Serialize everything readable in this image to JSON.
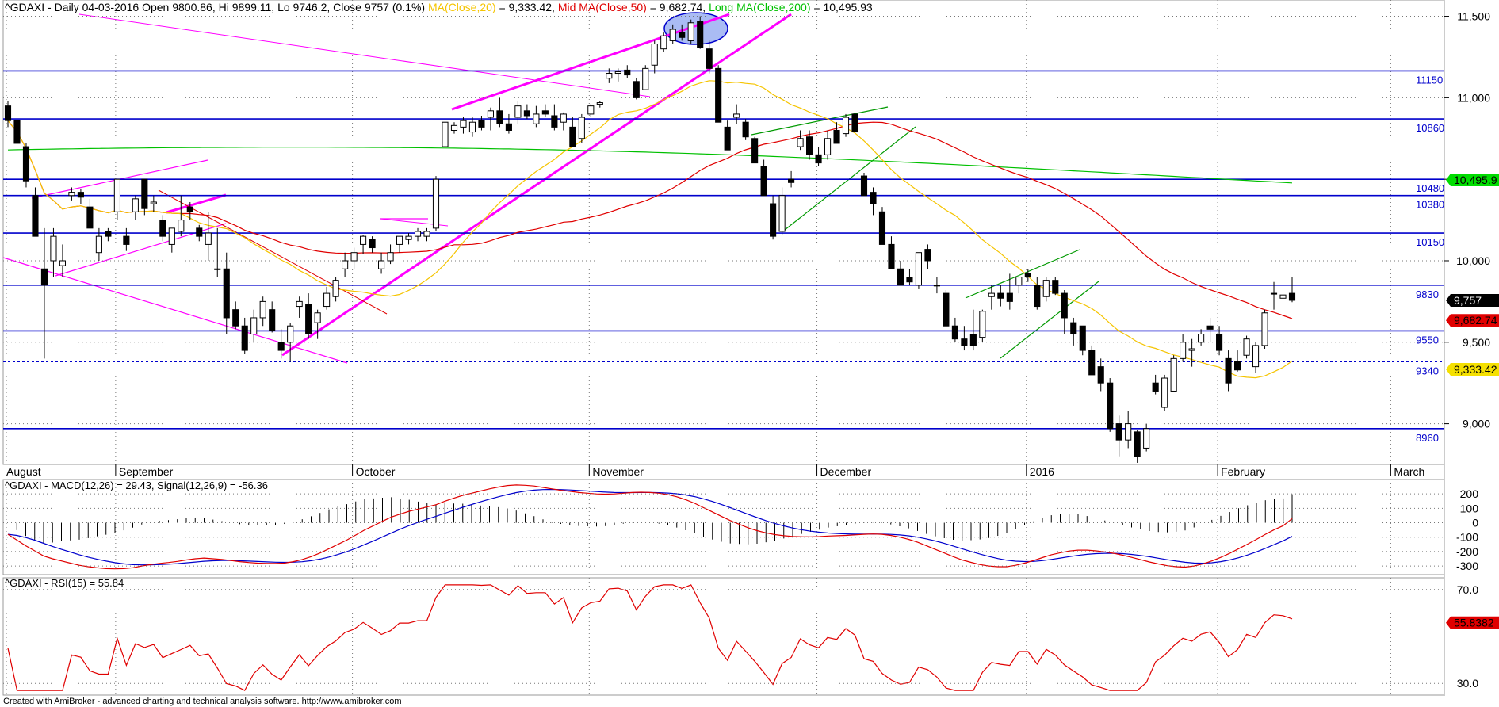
{
  "header": {
    "symbol": "^GDAXI",
    "summary": " - Daily 04-03-2016 Open 9800.86, Hi 9899.11, Lo 9746.2, Close 9757 (0.1%) ",
    "ma20_label": "MA(Close,20)",
    "ma20_value": " = 9,333.42, ",
    "ma50_label": "Mid MA(Close,50)",
    "ma50_value": " = 9,682.74, ",
    "ma200_label": "Long MA(Close,200)",
    "ma200_value": " = 10,495.93"
  },
  "colors": {
    "ma20": "#f5c400",
    "ma50": "#e00000",
    "ma200": "#00c000",
    "level_line": "#0000cc",
    "trend_magenta": "#ff00ff",
    "channel_green": "#009900",
    "macd": "#e00000",
    "signal": "#0000cc",
    "rsi": "#e00000"
  },
  "footer": "Created with AmiBroker - advanced charting and technical analysis software. http://www.amibroker.com",
  "chart_data": [
    {
      "type": "candlestick",
      "ylim": [
        8750,
        11600
      ],
      "price_ticks": [
        "11,500",
        "11,000",
        "10,500",
        "10,000",
        "9,500",
        "9,000"
      ],
      "months": [
        "August",
        "September",
        "October",
        "November",
        "December",
        "2016",
        "February",
        "March"
      ],
      "levels": [
        {
          "label": "11150",
          "value": 11165
        },
        {
          "label": "10860",
          "value": 10870
        },
        {
          "label": "10480",
          "value": 10500
        },
        {
          "label": "10380",
          "value": 10400
        },
        {
          "label": "10150",
          "value": 10170
        },
        {
          "label": "9830",
          "value": 9850
        },
        {
          "label": "9550",
          "value": 9570
        },
        {
          "label": "9340",
          "value": 9380
        },
        {
          "label": "8960",
          "value": 8970
        }
      ],
      "value_badges": [
        {
          "text": "10,495.9",
          "bg": "#00dd00",
          "fg": "#000000",
          "value": 10495.9
        },
        {
          "text": "9,757",
          "bg": "#000000",
          "fg": "#ffffff",
          "value": 9757
        },
        {
          "text": "9,682.74",
          "bg": "#e00000",
          "fg": "#000000",
          "value": 9682.74
        },
        {
          "text": "9,333.42",
          "bg": "#f5e000",
          "fg": "#000000",
          "value": 9333.42
        }
      ],
      "candles": [
        [
          10950,
          10980,
          10820,
          10860
        ],
        [
          10860,
          10870,
          10700,
          10720
        ],
        [
          10700,
          10720,
          10450,
          10490
        ],
        [
          10400,
          10450,
          10150,
          10150
        ],
        [
          9950,
          10200,
          9400,
          9850
        ],
        [
          10000,
          10200,
          9900,
          10150
        ],
        [
          9970,
          10100,
          9900,
          10000
        ],
        [
          10400,
          10450,
          10370,
          10420
        ],
        [
          10420,
          10440,
          10350,
          10390
        ],
        [
          10330,
          10380,
          10200,
          10200
        ],
        [
          10050,
          10200,
          10000,
          10150
        ],
        [
          10180,
          10200,
          10120,
          10150
        ],
        [
          10300,
          10500,
          10250,
          10500
        ],
        [
          10150,
          10200,
          10060,
          10100
        ],
        [
          10300,
          10400,
          10250,
          10380
        ],
        [
          10500,
          10500,
          10280,
          10320
        ],
        [
          10350,
          10400,
          10300,
          10360
        ],
        [
          10250,
          10280,
          10120,
          10150
        ],
        [
          10100,
          10200,
          10050,
          10200
        ],
        [
          10180,
          10400,
          10150,
          10250
        ],
        [
          10330,
          10360,
          10250,
          10300
        ],
        [
          10200,
          10220,
          10120,
          10150
        ],
        [
          10100,
          10300,
          10000,
          10170
        ],
        [
          9950,
          10200,
          9900,
          9950
        ],
        [
          9950,
          10050,
          9550,
          9650
        ],
        [
          9700,
          9750,
          9580,
          9600
        ],
        [
          9600,
          9650,
          9430,
          9450
        ],
        [
          9550,
          9700,
          9500,
          9650
        ],
        [
          9650,
          9780,
          9600,
          9750
        ],
        [
          9700,
          9750,
          9560,
          9570
        ],
        [
          9500,
          9580,
          9400,
          9450
        ],
        [
          9500,
          9620,
          9380,
          9600
        ],
        [
          9720,
          9780,
          9650,
          9750
        ],
        [
          9730,
          9800,
          9520,
          9550
        ],
        [
          9620,
          9700,
          9520,
          9680
        ],
        [
          9720,
          9840,
          9700,
          9800
        ],
        [
          9780,
          9900,
          9750,
          9880
        ],
        [
          9950,
          10050,
          9900,
          10000
        ],
        [
          10000,
          10080,
          9950,
          10050
        ],
        [
          10100,
          10160,
          10040,
          10150
        ],
        [
          10130,
          10150,
          10050,
          10080
        ],
        [
          9950,
          10050,
          9920,
          10000
        ],
        [
          10000,
          10100,
          9980,
          10050
        ],
        [
          10100,
          10150,
          10050,
          10150
        ],
        [
          10130,
          10170,
          10100,
          10150
        ],
        [
          10150,
          10200,
          10120,
          10180
        ],
        [
          10150,
          10200,
          10120,
          10180
        ],
        [
          10200,
          10520,
          10180,
          10500
        ],
        [
          10700,
          10900,
          10650,
          10850
        ],
        [
          10800,
          10850,
          10780,
          10830
        ],
        [
          10820,
          10880,
          10780,
          10860
        ],
        [
          10790,
          10880,
          10760,
          10850
        ],
        [
          10860,
          10890,
          10800,
          10820
        ],
        [
          10880,
          10940,
          10800,
          10920
        ],
        [
          10920,
          11000,
          10820,
          10840
        ],
        [
          10840,
          10900,
          10780,
          10800
        ],
        [
          10880,
          10980,
          10840,
          10950
        ],
        [
          10920,
          10960,
          10870,
          10890
        ],
        [
          10840,
          10950,
          10820,
          10900
        ],
        [
          10920,
          10960,
          10880,
          10900
        ],
        [
          10890,
          10960,
          10800,
          10820
        ],
        [
          10850,
          10910,
          10800,
          10900
        ],
        [
          10820,
          10880,
          10700,
          10700
        ],
        [
          10750,
          10900,
          10720,
          10880
        ],
        [
          10900,
          10960,
          10880,
          10950
        ],
        [
          10960,
          10980,
          10940,
          10970
        ],
        [
          11120,
          11180,
          11090,
          11150
        ],
        [
          11150,
          11180,
          11100,
          11160
        ],
        [
          11170,
          11200,
          11120,
          11140
        ],
        [
          11100,
          11120,
          10990,
          11000
        ],
        [
          11050,
          11200,
          11050,
          11180
        ],
        [
          11200,
          11350,
          11150,
          11330
        ],
        [
          11300,
          11400,
          11280,
          11380
        ],
        [
          11350,
          11450,
          11330,
          11420
        ],
        [
          11400,
          11450,
          11350,
          11370
        ],
        [
          11350,
          11480,
          11330,
          11460
        ],
        [
          11470,
          11500,
          11300,
          11310
        ],
        [
          11300,
          11350,
          11150,
          11180
        ],
        [
          11180,
          11200,
          10850,
          10850
        ],
        [
          10820,
          10860,
          10680,
          10680
        ],
        [
          10880,
          10960,
          10840,
          10900
        ],
        [
          10850,
          10870,
          10740,
          10760
        ],
        [
          10750,
          10760,
          10600,
          10600
        ],
        [
          10580,
          10620,
          10400,
          10400
        ],
        [
          10350,
          10400,
          10130,
          10150
        ],
        [
          10180,
          10450,
          10160,
          10400
        ],
        [
          10500,
          10550,
          10450,
          10480
        ],
        [
          10700,
          10800,
          10680,
          10750
        ],
        [
          10760,
          10800,
          10620,
          10650
        ],
        [
          10650,
          10700,
          10580,
          10600
        ],
        [
          10650,
          10800,
          10620,
          10750
        ],
        [
          10800,
          10850,
          10720,
          10720
        ],
        [
          10780,
          10900,
          10760,
          10880
        ],
        [
          10900,
          10920,
          10780,
          10790
        ],
        [
          10520,
          10540,
          10400,
          10400
        ],
        [
          10420,
          10450,
          10280,
          10350
        ],
        [
          10300,
          10330,
          10100,
          10100
        ],
        [
          10100,
          10150,
          9950,
          9950
        ],
        [
          9950,
          10000,
          9850,
          9850
        ],
        [
          9900,
          9950,
          9850,
          9870
        ],
        [
          9850,
          10050,
          9830,
          10050
        ],
        [
          10070,
          10100,
          9950,
          10000
        ],
        [
          9850,
          9900,
          9800,
          9850
        ],
        [
          9800,
          9820,
          9600,
          9600
        ],
        [
          9600,
          9650,
          9500,
          9520
        ],
        [
          9520,
          9600,
          9450,
          9480
        ],
        [
          9550,
          9700,
          9450,
          9480
        ],
        [
          9530,
          9700,
          9500,
          9690
        ],
        [
          9780,
          9850,
          9700,
          9800
        ],
        [
          9800,
          9850,
          9720,
          9770
        ],
        [
          9800,
          9920,
          9700,
          9750
        ],
        [
          9850,
          9900,
          9800,
          9900
        ],
        [
          9920,
          9950,
          9870,
          9900
        ],
        [
          9850,
          9900,
          9700,
          9720
        ],
        [
          9780,
          9900,
          9750,
          9880
        ],
        [
          9880,
          9900,
          9790,
          9800
        ],
        [
          9800,
          9820,
          9550,
          9650
        ],
        [
          9620,
          9650,
          9480,
          9550
        ],
        [
          9600,
          9600,
          9420,
          9450
        ],
        [
          9450,
          9480,
          9300,
          9300
        ],
        [
          9350,
          9400,
          9200,
          9250
        ],
        [
          9250,
          9280,
          8950,
          8970
        ],
        [
          9000,
          9050,
          8800,
          8900
        ],
        [
          8900,
          9080,
          8850,
          9000
        ],
        [
          8950,
          8960,
          8760,
          8800
        ],
        [
          8850,
          9000,
          8830,
          8970
        ],
        [
          9250,
          9300,
          9180,
          9200
        ],
        [
          9100,
          9300,
          9080,
          9280
        ],
        [
          9200,
          9420,
          9200,
          9400
        ],
        [
          9400,
          9550,
          9380,
          9500
        ],
        [
          9450,
          9520,
          9350,
          9460
        ],
        [
          9500,
          9580,
          9480,
          9550
        ],
        [
          9600,
          9650,
          9500,
          9580
        ],
        [
          9550,
          9600,
          9420,
          9450
        ],
        [
          9400,
          9450,
          9200,
          9250
        ],
        [
          9380,
          9450,
          9320,
          9330
        ],
        [
          9420,
          9540,
          9400,
          9520
        ],
        [
          9350,
          9500,
          9310,
          9480
        ],
        [
          9480,
          9700,
          9460,
          9680
        ],
        [
          9800,
          9870,
          9700,
          9800
        ],
        [
          9770,
          9810,
          9750,
          9790
        ],
        [
          9800,
          9899,
          9746,
          9757
        ]
      ]
    },
    {
      "type": "line",
      "title": "^GDAXI - MACD(12,26) = 29.43, Signal(12,26,9) = -56.36",
      "ylim": [
        -360,
        300
      ],
      "ticks": [
        "200",
        "100",
        "0",
        "-100",
        "-200",
        "-300"
      ],
      "macd": [
        -80,
        -120,
        -160,
        -195,
        -230,
        -250,
        -265,
        -280,
        -295,
        -305,
        -312,
        -318,
        -320,
        -318,
        -312,
        -300,
        -290,
        -282,
        -276,
        -268,
        -258,
        -250,
        -245,
        -250,
        -255,
        -262,
        -270,
        -276,
        -280,
        -282,
        -282,
        -280,
        -270,
        -255,
        -235,
        -210,
        -180,
        -150,
        -120,
        -85,
        -50,
        -20,
        10,
        40,
        60,
        80,
        95,
        110,
        125,
        150,
        170,
        190,
        205,
        220,
        235,
        248,
        258,
        262,
        260,
        255,
        245,
        235,
        225,
        218,
        210,
        205,
        200,
        198,
        200,
        205,
        210,
        212,
        210,
        205,
        195,
        180,
        160,
        135,
        105,
        75,
        45,
        15,
        -10,
        -35,
        -55,
        -70,
        -82,
        -90,
        -95,
        -97,
        -98,
        -96,
        -92,
        -90,
        -88,
        -84,
        -80,
        -78,
        -80,
        -88,
        -100,
        -115,
        -135,
        -160,
        -185,
        -210,
        -235,
        -258,
        -275,
        -290,
        -300,
        -305,
        -305,
        -295,
        -280,
        -262,
        -242,
        -222,
        -208,
        -196,
        -190,
        -190,
        -195,
        -202,
        -212,
        -225,
        -240,
        -256,
        -272,
        -286,
        -298,
        -305,
        -308,
        -300,
        -285,
        -265,
        -240,
        -212,
        -180,
        -148,
        -115,
        -80,
        -48,
        -20,
        29
      ]
    },
    {
      "type": "line",
      "title": "^GDAXI - RSI(15) = 55.84",
      "ylim": [
        25,
        75
      ],
      "ticks": [
        "70.0",
        "30.0"
      ],
      "rsi_badge": "55.8382"
    }
  ]
}
